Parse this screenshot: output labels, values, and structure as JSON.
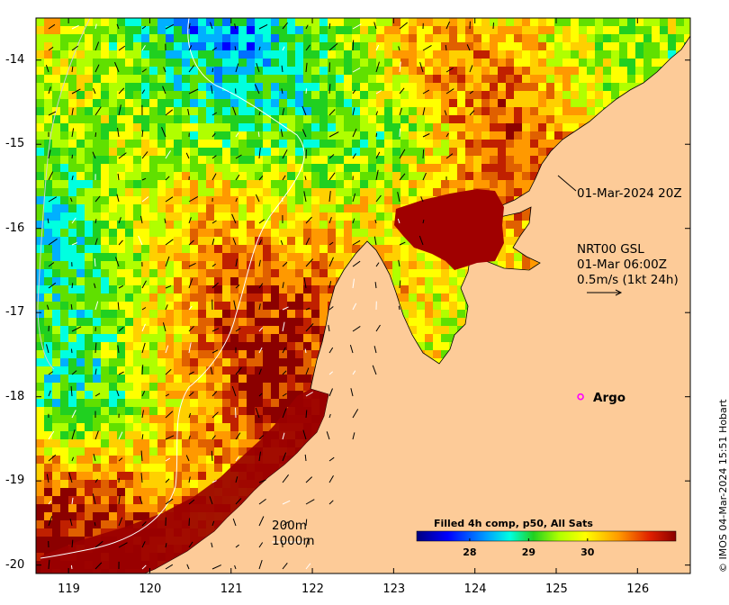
{
  "annotations": {
    "composite_time": "01-Mar-2024 20Z",
    "currents_line1": "NRT00 GSL",
    "currents_line2": "01-Mar 06:00Z",
    "currents_line3": "0.5m/s (1kt 24h)",
    "argo_label": "Argo",
    "isobath_200": "200m",
    "isobath_1000": "1000m",
    "credit": "© IMOS 04-Mar-2024 15:51 Hobart"
  },
  "colorbar": {
    "title": "Filled 4h comp, p50, All Sats",
    "ticks": [
      "28",
      "29",
      "30"
    ],
    "tick_values": [
      28,
      29,
      30
    ],
    "range": [
      27.1,
      31.5
    ]
  },
  "axes": {
    "x_ticks": [
      "119",
      "120",
      "121",
      "122",
      "123",
      "124",
      "125",
      "126"
    ],
    "x_values": [
      119,
      120,
      121,
      122,
      123,
      124,
      125,
      126
    ],
    "y_ticks": [
      "-14",
      "-15",
      "-16",
      "-17",
      "-18",
      "-19",
      "-20"
    ],
    "y_values": [
      -14,
      -15,
      -16,
      -17,
      -18,
      -19,
      -20
    ],
    "lon_range": [
      118.6,
      126.65
    ],
    "lat_range": [
      -20.1,
      -13.5
    ]
  },
  "colors": {
    "land": "#fdcb98",
    "argo_marker": "#ff00ff",
    "isobath": "#ffffff"
  },
  "map": {
    "argo": {
      "lon": 125.3,
      "lat": -18.0
    }
  }
}
